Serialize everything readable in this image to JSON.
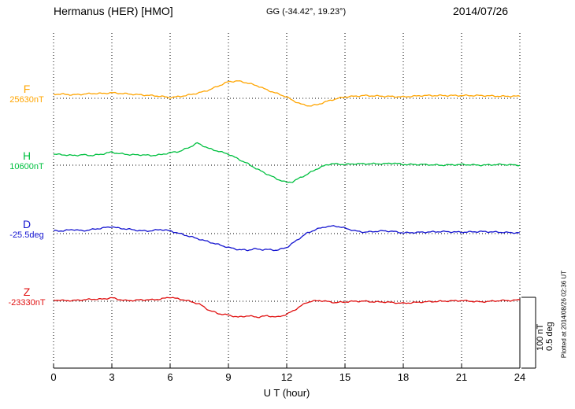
{
  "header": {
    "station": "Hermanus (HER)  [HMO]",
    "coords": "GG (-34.42°,  19.23°)",
    "date": "2014/07/26"
  },
  "footer": {
    "plotted_at": "Plotted at 2014/08/26 02:36 UT"
  },
  "scale_bar": {
    "nt": "100 nT",
    "deg": "0.5 deg"
  },
  "chart_data": {
    "type": "line",
    "title": "Hermanus (HER) [HMO] magnetogram 2014/07/26",
    "xlabel": "U T (hour)",
    "x_range": [
      0,
      24
    ],
    "x_ticks": [
      "0",
      "3",
      "6",
      "9",
      "12",
      "15",
      "18",
      "21",
      "24"
    ],
    "grid": "dotted vertical line at every x tick; dotted horizontal baseline for each channel",
    "legend_position": "left margin channel labels",
    "scale_bar": "100 nT / 0.5 deg",
    "series": [
      {
        "name": "F",
        "units": "nT",
        "color": "#FFA500",
        "baseline": 25630,
        "baseline_label": "25630nT",
        "points": [
          [
            0,
            6
          ],
          [
            0.5,
            6
          ],
          [
            1,
            5
          ],
          [
            1.5,
            6
          ],
          [
            2,
            7
          ],
          [
            2.5,
            7
          ],
          [
            3,
            8
          ],
          [
            3.5,
            7
          ],
          [
            4,
            6
          ],
          [
            4.5,
            5
          ],
          [
            5,
            4
          ],
          [
            5.5,
            3
          ],
          [
            6,
            1
          ],
          [
            6.3,
            2
          ],
          [
            6.8,
            4
          ],
          [
            7.5,
            8
          ],
          [
            8,
            12
          ],
          [
            8.5,
            18
          ],
          [
            9,
            24
          ],
          [
            9.5,
            25
          ],
          [
            10,
            22
          ],
          [
            10.5,
            18
          ],
          [
            11,
            12
          ],
          [
            11.5,
            7
          ],
          [
            12,
            2
          ],
          [
            12.3,
            -3
          ],
          [
            12.8,
            -9
          ],
          [
            13.2,
            -11
          ],
          [
            13.6,
            -9
          ],
          [
            14,
            -5
          ],
          [
            14.5,
            -1
          ],
          [
            15,
            2
          ],
          [
            15.5,
            3
          ],
          [
            16,
            4
          ],
          [
            17,
            3
          ],
          [
            18,
            2
          ],
          [
            18.5,
            3
          ],
          [
            19,
            4
          ],
          [
            20,
            4
          ],
          [
            21,
            4
          ],
          [
            22,
            4
          ],
          [
            23,
            3
          ],
          [
            24,
            3
          ]
        ]
      },
      {
        "name": "H",
        "units": "nT",
        "color": "#00C040",
        "baseline": 10600,
        "baseline_label": "10600nT",
        "points": [
          [
            0,
            16
          ],
          [
            0.5,
            15
          ],
          [
            1,
            14
          ],
          [
            1.5,
            15
          ],
          [
            2,
            14
          ],
          [
            2.5,
            16
          ],
          [
            3,
            19
          ],
          [
            3.3,
            17
          ],
          [
            4,
            15
          ],
          [
            4.5,
            15
          ],
          [
            5,
            14
          ],
          [
            5.5,
            15
          ],
          [
            6,
            18
          ],
          [
            6.5,
            20
          ],
          [
            7,
            26
          ],
          [
            7.4,
            32
          ],
          [
            7.7,
            28
          ],
          [
            8,
            24
          ],
          [
            8.5,
            20
          ],
          [
            9,
            16
          ],
          [
            9.5,
            9
          ],
          [
            10,
            2
          ],
          [
            10.5,
            -6
          ],
          [
            11,
            -13
          ],
          [
            11.5,
            -20
          ],
          [
            12,
            -25
          ],
          [
            12.3,
            -24
          ],
          [
            12.7,
            -18
          ],
          [
            13,
            -14
          ],
          [
            13.5,
            -6
          ],
          [
            14,
            0
          ],
          [
            14.3,
            2
          ],
          [
            15,
            1
          ],
          [
            15.5,
            2
          ],
          [
            16,
            2
          ],
          [
            17,
            2
          ],
          [
            17.5,
            3
          ],
          [
            18,
            1
          ],
          [
            19,
            1
          ],
          [
            20,
            0
          ],
          [
            21,
            1
          ],
          [
            22,
            0
          ],
          [
            23,
            1
          ],
          [
            24,
            0
          ]
        ]
      },
      {
        "name": "D",
        "units": "deg",
        "color": "#1414D0",
        "baseline": -25.5,
        "baseline_label": "-25.5deg",
        "points": [
          [
            0,
            0.02
          ],
          [
            0.5,
            0.02
          ],
          [
            1,
            0.03
          ],
          [
            1.5,
            0.02
          ],
          [
            2,
            0.03
          ],
          [
            2.5,
            0.04
          ],
          [
            3,
            0.05
          ],
          [
            3.3,
            0.04
          ],
          [
            4,
            0.03
          ],
          [
            4.5,
            0.02
          ],
          [
            5,
            0.02
          ],
          [
            5.5,
            0.03
          ],
          [
            6,
            0.02
          ],
          [
            6.5,
            0
          ],
          [
            7,
            -0.02
          ],
          [
            7.5,
            -0.04
          ],
          [
            8,
            -0.06
          ],
          [
            8.5,
            -0.08
          ],
          [
            9,
            -0.1
          ],
          [
            9.5,
            -0.115
          ],
          [
            10,
            -0.12
          ],
          [
            10.3,
            -0.11
          ],
          [
            10.7,
            -0.115
          ],
          [
            11,
            -0.115
          ],
          [
            11.5,
            -0.12
          ],
          [
            12,
            -0.1
          ],
          [
            12.5,
            -0.05
          ],
          [
            13,
            0
          ],
          [
            13.5,
            0.03
          ],
          [
            14,
            0.05
          ],
          [
            14.5,
            0.055
          ],
          [
            15,
            0.04
          ],
          [
            15.5,
            0.02
          ],
          [
            16,
            0.01
          ],
          [
            16.5,
            0.015
          ],
          [
            17,
            0.02
          ],
          [
            17.5,
            0.015
          ],
          [
            18,
            0.005
          ],
          [
            19,
            0.01
          ],
          [
            20,
            0.015
          ],
          [
            21,
            0.01
          ],
          [
            22,
            0.015
          ],
          [
            23,
            0.01
          ],
          [
            24,
            0.005
          ]
        ]
      },
      {
        "name": "Z",
        "units": "nT",
        "color": "#E01010",
        "baseline": -23330,
        "baseline_label": "-23330nT",
        "points": [
          [
            0,
            2
          ],
          [
            0.5,
            1
          ],
          [
            1,
            1
          ],
          [
            1.5,
            2
          ],
          [
            2,
            3
          ],
          [
            2.5,
            3
          ],
          [
            3,
            5
          ],
          [
            3.3,
            3
          ],
          [
            3.7,
            1
          ],
          [
            4,
            1
          ],
          [
            4.5,
            2
          ],
          [
            5,
            2
          ],
          [
            5.5,
            3
          ],
          [
            6,
            6
          ],
          [
            6.3,
            4
          ],
          [
            6.7,
            2
          ],
          [
            7,
            0
          ],
          [
            7.5,
            -4
          ],
          [
            8,
            -13
          ],
          [
            8.5,
            -18
          ],
          [
            9,
            -20
          ],
          [
            9.5,
            -23
          ],
          [
            10,
            -21
          ],
          [
            10.5,
            -23
          ],
          [
            11,
            -21
          ],
          [
            11.5,
            -23
          ],
          [
            12,
            -19
          ],
          [
            12.5,
            -11
          ],
          [
            13,
            -2
          ],
          [
            13.3,
            0
          ],
          [
            13.7,
            1
          ],
          [
            14,
            0
          ],
          [
            14.5,
            -2
          ],
          [
            15,
            -1
          ],
          [
            15.5,
            0
          ],
          [
            16,
            0
          ],
          [
            16.5,
            -1
          ],
          [
            17,
            -1
          ],
          [
            17.5,
            -2
          ],
          [
            18,
            -3
          ],
          [
            18.5,
            -2
          ],
          [
            19,
            -1
          ],
          [
            20,
            0
          ],
          [
            21,
            1
          ],
          [
            21.5,
            0
          ],
          [
            22,
            -1
          ],
          [
            22.5,
            0
          ],
          [
            23,
            1
          ],
          [
            23.5,
            1
          ],
          [
            24,
            2
          ]
        ]
      }
    ]
  }
}
